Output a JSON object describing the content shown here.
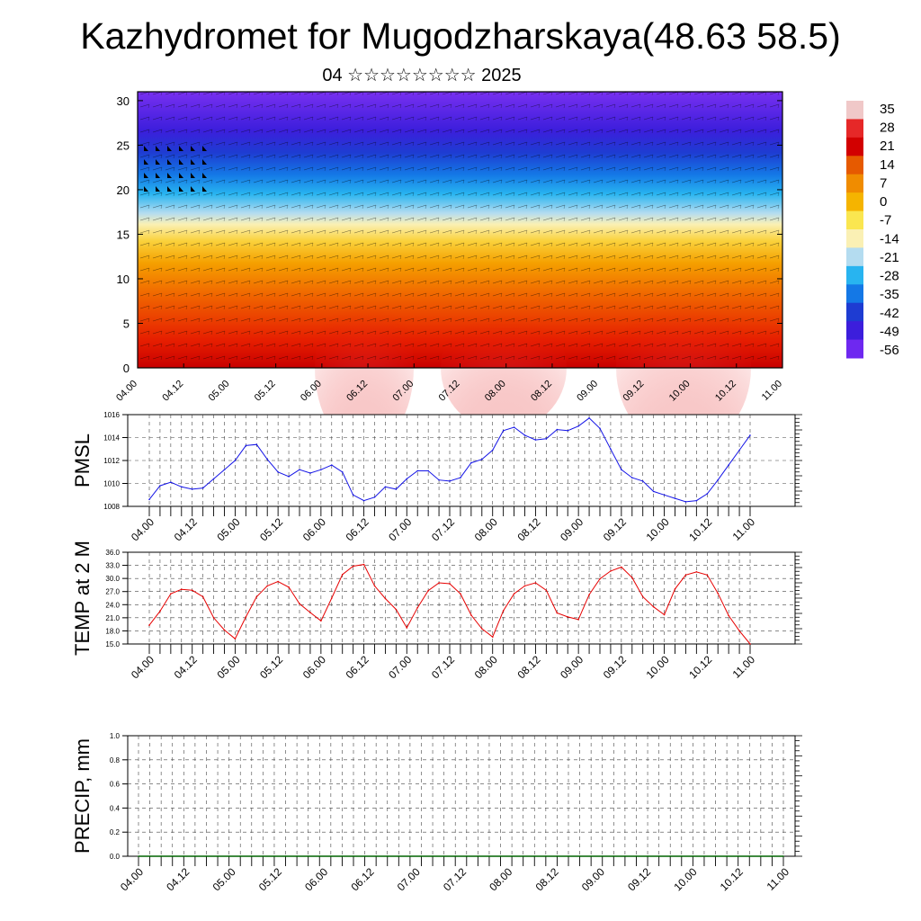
{
  "header": {
    "title": "Kazhydromet for Mugodzharskaya(48.63 58.5)",
    "subtitle": "04 ☆☆☆☆☆☆☆☆ 2025"
  },
  "colors": {
    "pmsl_line": "#1414e6",
    "temp_line": "#e60000",
    "precip_line": "#006400",
    "grid": "#555555"
  },
  "chart_data": [
    {
      "type": "heatmap",
      "name": "cross-section",
      "ylim": [
        0,
        31
      ],
      "yticks": [
        "0",
        "5",
        "10",
        "15",
        "20",
        "25",
        "30"
      ],
      "xticks": [
        "04.00",
        "04.12",
        "05.00",
        "05.12",
        "06.00",
        "06.12",
        "07.00",
        "07.12",
        "08.00",
        "08.12",
        "09.00",
        "09.12",
        "10.00",
        "10.12",
        "11.00"
      ],
      "colorbar": {
        "labels": [
          "35",
          "28",
          "21",
          "14",
          "7",
          "0",
          "-7",
          "-14",
          "-21",
          "-28",
          "-35",
          "-42",
          "-49",
          "-56"
        ],
        "colors": [
          "#f0c8c8",
          "#e62828",
          "#d20000",
          "#e65a00",
          "#f08c00",
          "#f5b400",
          "#fae650",
          "#faf0b4",
          "#b4dcf0",
          "#28b4f0",
          "#1478e6",
          "#1e3cd2",
          "#3c1edc",
          "#6e28f0"
        ]
      }
    },
    {
      "type": "line",
      "ylabel": "PMSL",
      "ylim": [
        1008,
        1016
      ],
      "yticks": [
        "1008",
        "1010",
        "1012",
        "1014",
        "1016"
      ],
      "xticks": [
        "04.00",
        "04.12",
        "05.00",
        "05.12",
        "06.00",
        "06.12",
        "07.00",
        "07.12",
        "08.00",
        "08.12",
        "09.00",
        "09.12",
        "10.00",
        "10.12",
        "11.00"
      ],
      "values": [
        1008.6,
        1009.8,
        1010.1,
        1009.7,
        1009.5,
        1009.6,
        1010.4,
        1011.2,
        1012.0,
        1013.3,
        1013.4,
        1012.1,
        1011.0,
        1010.6,
        1011.2,
        1010.9,
        1011.2,
        1011.6,
        1011.0,
        1009.0,
        1008.5,
        1008.8,
        1009.7,
        1009.5,
        1010.4,
        1011.1,
        1011.1,
        1010.3,
        1010.2,
        1010.5,
        1011.8,
        1012.1,
        1012.9,
        1014.6,
        1014.9,
        1014.2,
        1013.8,
        1013.9,
        1014.7,
        1014.6,
        1015.0,
        1015.7,
        1014.8,
        1013.0,
        1011.2,
        1010.5,
        1010.2,
        1009.3,
        1009.0,
        1008.7,
        1008.4,
        1008.5,
        1009.1,
        1010.3,
        1011.6,
        1012.9,
        1014.2
      ]
    },
    {
      "type": "line",
      "ylabel": "TEMP at 2 M",
      "ylim": [
        15.0,
        36.0
      ],
      "yticks": [
        "15.0",
        "18.0",
        "21.0",
        "24.0",
        "27.0",
        "30.0",
        "33.0",
        "36.0"
      ],
      "xticks": [
        "04.00",
        "04.12",
        "05.00",
        "05.12",
        "06.00",
        "06.12",
        "07.00",
        "07.12",
        "08.00",
        "08.12",
        "09.00",
        "09.12",
        "10.00",
        "10.12",
        "11.00"
      ],
      "values": [
        19.3,
        22.5,
        26.5,
        27.5,
        27.3,
        25.8,
        21.0,
        18.2,
        16.2,
        21.2,
        25.8,
        28.3,
        29.3,
        28.0,
        24.2,
        22.2,
        20.3,
        25.5,
        30.9,
        32.8,
        33.2,
        28.3,
        25.4,
        22.9,
        18.7,
        23.3,
        27.2,
        29.0,
        28.8,
        26.5,
        21.6,
        18.5,
        16.6,
        22.6,
        26.5,
        28.3,
        29.0,
        27.3,
        22.1,
        21.2,
        20.6,
        26.3,
        29.9,
        31.7,
        32.6,
        30.2,
        25.8,
        23.5,
        21.7,
        27.6,
        30.8,
        31.5,
        30.8,
        26.6,
        21.5,
        18.0,
        15.0
      ]
    },
    {
      "type": "line",
      "ylabel": "PRECIP, mm",
      "ylim": [
        0.0,
        1.0
      ],
      "yticks": [
        "0.0",
        "0.2",
        "0.4",
        "0.6",
        "0.8",
        "1.0"
      ],
      "xticks": [
        "04.00",
        "04.12",
        "05.00",
        "05.12",
        "06.00",
        "06.12",
        "07.00",
        "07.12",
        "08.00",
        "08.12",
        "09.00",
        "09.12",
        "10.00",
        "10.12",
        "11.00"
      ],
      "values": [
        0,
        0,
        0,
        0,
        0,
        0,
        0,
        0,
        0,
        0,
        0,
        0,
        0,
        0,
        0,
        0,
        0,
        0,
        0,
        0,
        0,
        0,
        0,
        0,
        0,
        0,
        0,
        0,
        0,
        0,
        0,
        0,
        0,
        0,
        0,
        0,
        0,
        0,
        0,
        0,
        0,
        0,
        0,
        0,
        0,
        0,
        0,
        0,
        0,
        0,
        0,
        0,
        0,
        0,
        0,
        0,
        0,
        0
      ]
    }
  ]
}
